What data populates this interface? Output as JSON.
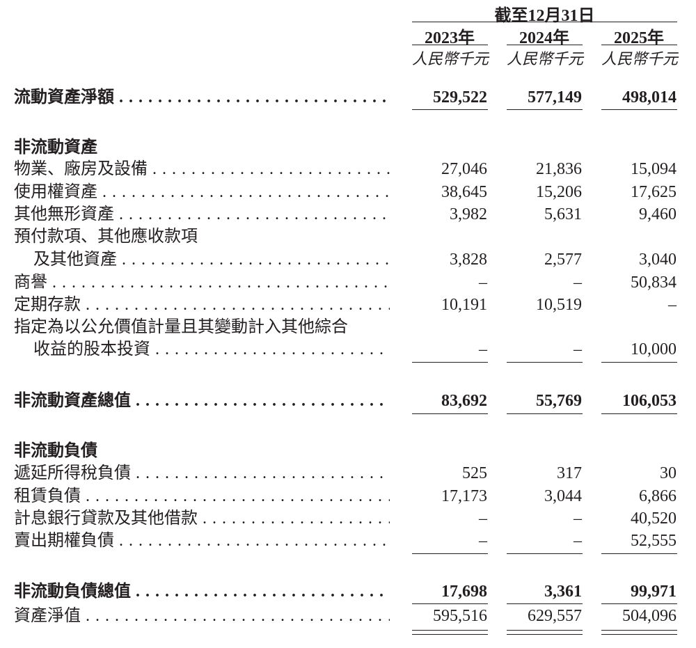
{
  "header": {
    "period_label": "截至12月31日",
    "years": [
      "2023年",
      "2024年",
      "2025年"
    ],
    "unit": "人民幣千元"
  },
  "rows": [
    {
      "label": "流動資產淨額",
      "bold": true,
      "values": [
        "529,522",
        "577,149",
        "498,014"
      ]
    },
    {
      "label": "非流動資產",
      "bold": true,
      "heading": true
    },
    {
      "label": "物業、廠房及設備",
      "values": [
        "27,046",
        "21,836",
        "15,094"
      ]
    },
    {
      "label": "使用權資產",
      "values": [
        "38,645",
        "15,206",
        "17,625"
      ]
    },
    {
      "label": "其他無形資產",
      "values": [
        "3,982",
        "5,631",
        "9,460"
      ]
    },
    {
      "label": "預付款項、其他應收款項",
      "heading": true
    },
    {
      "label": "及其他資產",
      "indent": true,
      "values": [
        "3,828",
        "2,577",
        "3,040"
      ]
    },
    {
      "label": "商譽",
      "values": [
        "–",
        "–",
        "50,834"
      ]
    },
    {
      "label": "定期存款",
      "values": [
        "10,191",
        "10,519",
        "–"
      ]
    },
    {
      "label": "指定為以公允價值計量且其變動計入其他綜合",
      "heading": true
    },
    {
      "label": "收益的股本投資",
      "indent": true,
      "values": [
        "–",
        "–",
        "10,000"
      ]
    },
    {
      "label": "非流動資產總值",
      "bold": true,
      "values": [
        "83,692",
        "55,769",
        "106,053"
      ]
    },
    {
      "label": "非流動負債",
      "bold": true,
      "heading": true
    },
    {
      "label": "遞延所得稅負債",
      "values": [
        "525",
        "317",
        "30"
      ]
    },
    {
      "label": "租賃負債",
      "values": [
        "17,173",
        "3,044",
        "6,866"
      ]
    },
    {
      "label": "計息銀行貸款及其他借款",
      "values": [
        "–",
        "–",
        "40,520"
      ]
    },
    {
      "label": "賣出期權負債",
      "values": [
        "–",
        "–",
        "52,555"
      ]
    },
    {
      "label": "非流動負債總值",
      "bold": true,
      "values": [
        "17,698",
        "3,361",
        "99,971"
      ]
    },
    {
      "label": "資產淨值",
      "values": [
        "595,516",
        "629,557",
        "504,096"
      ]
    }
  ]
}
